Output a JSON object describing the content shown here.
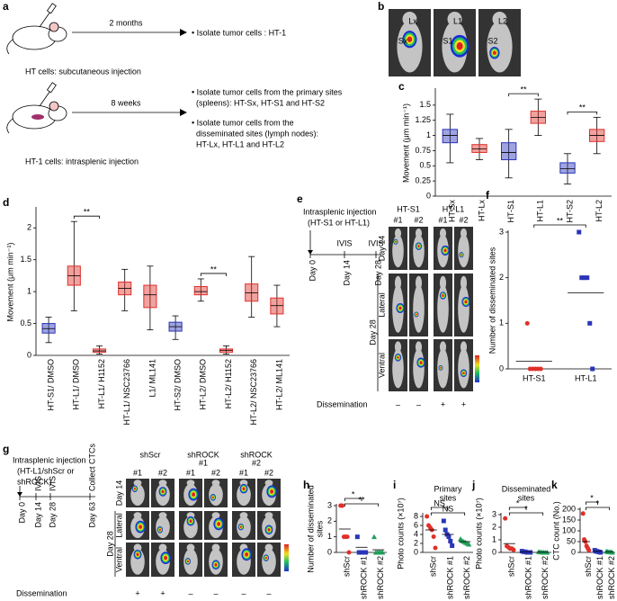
{
  "panel_a": {
    "label": "a",
    "top": {
      "interval": "2 months",
      "result": "• Isolate tumor cells : HT-1",
      "caption": "HT cells: subcutaneous injection"
    },
    "bottom": {
      "interval": "8 weeks",
      "results": [
        "• Isolate tumor cells from the primary sites",
        "(spleens): HT-Sx, HT-S1 and HT-S2",
        "• Isolate tumor cells from the",
        "disseminated sites (lymph nodes):",
        "HT-Lx, HT-L1 and HT-L2"
      ],
      "caption": "HT-1 cells: intrasplenic injection"
    }
  },
  "panel_b": {
    "label": "b",
    "images": [
      {
        "upper": "Lx",
        "lower": "Sx"
      },
      {
        "upper": "L1",
        "lower": "S1"
      },
      {
        "upper": "L2",
        "lower": "S2"
      }
    ]
  },
  "panel_e": {
    "label": "e",
    "injection": [
      "Intrasplenic injection",
      "(HT-S1 or HT-L1)"
    ],
    "timeline": [
      {
        "day": "Day 0"
      },
      {
        "day": "Day 14",
        "event": "IVIS"
      },
      {
        "day": "Day 28",
        "event": "IVIS"
      }
    ],
    "groups": [
      [
        "HT-S1"
      ],
      [
        "HT-L1"
      ]
    ],
    "columns": [
      "#1",
      "#2",
      "#1",
      "#2"
    ],
    "rows": {
      "day14": "Day 14",
      "day28": "Day 28",
      "lateral": "Lateral",
      "ventral": "Ventral"
    },
    "dissemination": {
      "label": "Dissemination",
      "marks": [
        "–",
        "–",
        "+",
        "+"
      ]
    }
  },
  "panel_g": {
    "label": "g",
    "injection": [
      "Intrasplenic injection",
      "(HT-L1/shScr or",
      "shROCK)"
    ],
    "timeline": [
      {
        "day": "Day 0"
      },
      {
        "day": "Day 14",
        "event": "IVIS"
      },
      {
        "day": "Day 28",
        "event": "IVIS"
      },
      {
        "day": "Day 63",
        "event": "Collect CTCs"
      }
    ],
    "groups": [
      [
        "shScr"
      ],
      [
        "shROCK",
        "#1"
      ],
      [
        "shROCK",
        "#2"
      ]
    ],
    "columns": [
      "#1",
      "#2",
      "#1",
      "#2",
      "#1",
      "#2"
    ],
    "rows": {
      "day14": "Day 14",
      "day28": "Day 28",
      "lateral": "Lateral",
      "ventral": "Ventral"
    },
    "dissemination": {
      "label": "Dissemination",
      "marks": [
        "+",
        "+",
        "–",
        "–",
        "–",
        "–"
      ]
    }
  },
  "chart_data": [
    {
      "type": "box",
      "label": "c",
      "ylabel": [
        "Movement (μm min⁻¹)"
      ],
      "categories": [
        "HT-Sx",
        "HT-Lx",
        "HT-S1",
        "HT-L1",
        "HT-S2",
        "HT-L2"
      ],
      "colors": [
        "#2a35b8",
        "#e0302a",
        "#2a35b8",
        "#e0302a",
        "#2a35b8",
        "#e0302a"
      ],
      "boxes": [
        {
          "min": 0.55,
          "q1": 0.88,
          "median": 1.0,
          "q3": 1.1,
          "max": 1.35
        },
        {
          "min": 0.6,
          "q1": 0.72,
          "median": 0.78,
          "q3": 0.85,
          "max": 0.95
        },
        {
          "min": 0.3,
          "q1": 0.6,
          "median": 0.72,
          "q3": 0.88,
          "max": 1.1
        },
        {
          "min": 1.0,
          "q1": 1.2,
          "median": 1.3,
          "q3": 1.4,
          "max": 1.6
        },
        {
          "min": 0.2,
          "q1": 0.38,
          "median": 0.45,
          "q3": 0.55,
          "max": 0.7
        },
        {
          "min": 0.7,
          "q1": 0.9,
          "median": 1.0,
          "q3": 1.1,
          "max": 1.3
        }
      ],
      "ylim": [
        0,
        1.75
      ],
      "yticks": [
        0,
        0.25,
        0.5,
        0.75,
        1,
        1.25,
        1.5
      ],
      "significance": [
        {
          "between": [
            "HT-S1",
            "HT-L1"
          ],
          "text": "**"
        },
        {
          "between": [
            "HT-S2",
            "HT-L2"
          ],
          "text": "**"
        }
      ]
    },
    {
      "type": "box",
      "label": "d",
      "ylabel": [
        "Movement (μm min⁻¹)"
      ],
      "categories": [
        "HT-S1/ DMSO",
        "HT-L1/ DMSO",
        "HT-L1/ H1152",
        "HT-L1/ NSC23766",
        "L1/ ML141",
        "HT-S2/ DMSO",
        "HT-L2/ DMSO",
        "HT-L2/ H1152",
        "HT-L2/ NSC23766",
        "HT-L2/ ML141"
      ],
      "colors": [
        "#2a35b8",
        "#e0302a",
        "#e0302a",
        "#e0302a",
        "#e0302a",
        "#2a35b8",
        "#e0302a",
        "#e0302a",
        "#e0302a",
        "#e0302a"
      ],
      "boxes": [
        {
          "min": 0.2,
          "q1": 0.35,
          "median": 0.42,
          "q3": 0.5,
          "max": 0.6
        },
        {
          "min": 0.7,
          "q1": 1.1,
          "median": 1.25,
          "q3": 1.4,
          "max": 2.1
        },
        {
          "min": 0.02,
          "q1": 0.05,
          "median": 0.07,
          "q3": 0.1,
          "max": 0.15
        },
        {
          "min": 0.7,
          "q1": 0.95,
          "median": 1.05,
          "q3": 1.15,
          "max": 1.35
        },
        {
          "min": 0.4,
          "q1": 0.75,
          "median": 0.95,
          "q3": 1.1,
          "max": 1.4
        },
        {
          "min": 0.25,
          "q1": 0.38,
          "median": 0.45,
          "q3": 0.52,
          "max": 0.62
        },
        {
          "min": 0.85,
          "q1": 0.95,
          "median": 1.0,
          "q3": 1.08,
          "max": 1.2
        },
        {
          "min": 0.02,
          "q1": 0.05,
          "median": 0.08,
          "q3": 0.1,
          "max": 0.15
        },
        {
          "min": 0.6,
          "q1": 0.85,
          "median": 0.98,
          "q3": 1.12,
          "max": 1.55
        },
        {
          "min": 0.45,
          "q1": 0.65,
          "median": 0.78,
          "q3": 0.9,
          "max": 1.1
        }
      ],
      "ylim": [
        0,
        2.3
      ],
      "yticks": [
        0,
        0.5,
        1,
        1.5,
        2
      ],
      "significance": [
        {
          "between": [
            "HT-L1/ DMSO",
            "HT-L1/ H1152"
          ],
          "text": "**"
        },
        {
          "between": [
            "HT-L2/ DMSO",
            "HT-L2/ H1152"
          ],
          "text": "**"
        }
      ]
    },
    {
      "type": "dot",
      "label": "f",
      "ylabel": [
        "Number of disseminated sites"
      ],
      "categories": [
        "HT-S1",
        "HT-L1"
      ],
      "colors": [
        "#e0302a",
        "#2a35b8"
      ],
      "markers": [
        "circle",
        "square"
      ],
      "values": [
        [
          1,
          0,
          0,
          0,
          0,
          0
        ],
        [
          3,
          2,
          2,
          2,
          1,
          0
        ]
      ],
      "means": [
        0.17,
        1.67
      ],
      "ylim": [
        0,
        3
      ],
      "yticks": [
        0,
        1,
        2,
        3
      ],
      "significance": [
        {
          "between": [
            "HT-S1",
            "HT-L1"
          ],
          "text": "**"
        }
      ]
    },
    {
      "type": "dot",
      "label": "h",
      "ylabel": [
        "Number of disseminated",
        "sites"
      ],
      "categories": [
        "shScr",
        "shROCK #1",
        "shROCK #2"
      ],
      "colors": [
        "#e0302a",
        "#2a35b8",
        "#1f9e5a"
      ],
      "markers": [
        "circle",
        "square",
        "triangle"
      ],
      "values": [
        [
          3,
          3,
          1,
          1,
          1,
          0
        ],
        [
          1,
          0,
          0,
          0,
          0,
          0
        ],
        [
          1,
          0,
          0,
          0,
          0,
          0
        ]
      ],
      "means": [
        1.5,
        0.33,
        0.17
      ],
      "ylim": [
        0,
        3
      ],
      "yticks": [
        0,
        1,
        2,
        3
      ],
      "significance": [
        {
          "between": [
            "shScr",
            "shROCK #1"
          ],
          "text": "*"
        },
        {
          "between": [
            "shScr",
            "shROCK #2"
          ],
          "text": "**"
        }
      ]
    },
    {
      "type": "dot",
      "label": "i",
      "title": [
        "Primary",
        "sites"
      ],
      "ylabel": [
        "Photo counts (×10⁷)"
      ],
      "categories": [
        "shScr",
        "shROCK #1",
        "shROCK #2"
      ],
      "colors": [
        "#e0302a",
        "#2a35b8",
        "#1f9e5a"
      ],
      "markers": [
        "circle",
        "square",
        "triangle"
      ],
      "values": [
        [
          8,
          6,
          5.5,
          5,
          3.5,
          1
        ],
        [
          7,
          5,
          4,
          3.5,
          2.5,
          1.5
        ],
        [
          3,
          2.6,
          2.4,
          2.2,
          2,
          1.8
        ]
      ],
      "means": [
        5,
        4,
        2.4
      ],
      "ylim": [
        0,
        8.4
      ],
      "yticks": [
        0,
        2,
        4,
        6,
        8
      ],
      "significance": [
        {
          "between": [
            "shScr",
            "shROCK #1"
          ],
          "text": "NS"
        },
        {
          "between": [
            "shScr",
            "shROCK #2"
          ],
          "text": "NS"
        }
      ]
    },
    {
      "type": "dot",
      "label": "j",
      "title": [
        "Disseminated",
        "sites"
      ],
      "ylabel": [
        "Photo counts (×10⁷)"
      ],
      "categories": [
        "shScr",
        "shROCK #1",
        "shROCK #2"
      ],
      "colors": [
        "#e0302a",
        "#2a35b8",
        "#1f9e5a"
      ],
      "markers": [
        "circle",
        "square",
        "triangle"
      ],
      "values": [
        [
          2.7,
          0.5,
          0.4,
          0.3,
          0.3,
          0.2
        ],
        [
          0.1,
          0.05,
          0.05,
          0,
          0,
          0
        ],
        [
          0.05,
          0.03,
          0.02,
          0,
          0,
          0
        ]
      ],
      "means": [
        0.7,
        0.05,
        0.02
      ],
      "ylim": [
        0,
        3
      ],
      "yticks": [
        0,
        1,
        2,
        3
      ],
      "significance": [
        {
          "between": [
            "shScr",
            "shROCK #1"
          ],
          "text": "*"
        },
        {
          "between": [
            "shScr",
            "shROCK #2"
          ],
          "text": "*"
        }
      ]
    },
    {
      "type": "dot",
      "label": "k",
      "ylabel": [
        "CTC count (No.)"
      ],
      "categories": [
        "shScr",
        "shROCK #1",
        "shROCK #2"
      ],
      "colors": [
        "#e0302a",
        "#2a35b8",
        "#1f9e5a"
      ],
      "markers": [
        "circle",
        "square",
        "triangle"
      ],
      "values": [
        [
          180,
          60,
          50,
          30,
          20,
          10
        ],
        [
          10,
          5,
          5,
          3,
          2,
          0
        ],
        [
          5,
          3,
          2,
          2,
          1,
          0
        ]
      ],
      "means": [
        50,
        5,
        3
      ],
      "ylim": [
        0,
        200
      ],
      "yticks": [
        0,
        50,
        100,
        150,
        200
      ],
      "significance": [
        {
          "between": [
            "shScr",
            "shROCK #1"
          ],
          "text": "*"
        },
        {
          "between": [
            "shScr",
            "shROCK #2"
          ],
          "text": "*"
        }
      ]
    }
  ]
}
